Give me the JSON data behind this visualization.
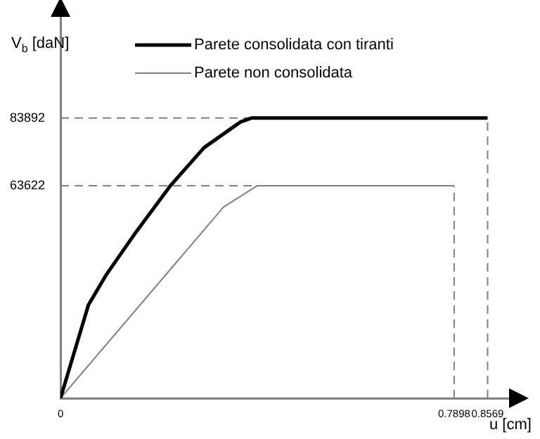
{
  "chart_data": {
    "type": "line",
    "xlabel": "u [cm]",
    "ylabel": "V$_{b}$ [daN]",
    "xlim": [
      0,
      0.9
    ],
    "ylim": [
      0,
      115000
    ],
    "xticks": [
      0,
      0.7898,
      0.8569
    ],
    "yticks": [
      63622,
      83892
    ],
    "series": [
      {
        "name": "Parete consolidata con tiranti",
        "color": "#000000",
        "x": [
          0,
          0.056,
          0.092,
          0.148,
          0.221,
          0.288,
          0.361,
          0.384,
          0.8569
        ],
        "values": [
          0,
          27900,
          37000,
          49000,
          63700,
          75000,
          82700,
          83892,
          83892
        ]
      },
      {
        "name": "Parete non consolidata",
        "color": "#808080",
        "x": [
          0,
          0.327,
          0.395,
          0.7898
        ],
        "values": [
          0,
          57200,
          63622,
          63622
        ]
      }
    ],
    "ref_lines": [
      {
        "axis": "y",
        "value": 83892,
        "color": "#808080",
        "line_style": "dashed"
      },
      {
        "axis": "y",
        "value": 63622,
        "color": "#808080",
        "line_style": "dashed"
      },
      {
        "axis": "x",
        "value": 0.7898,
        "color": "#808080",
        "line_style": "dashed"
      },
      {
        "axis": "x",
        "value": 0.8569,
        "color": "#808080",
        "line_style": "dashed"
      }
    ],
    "legend": "top",
    "grid": false,
    "marker": "none",
    "line_style": "solid"
  }
}
